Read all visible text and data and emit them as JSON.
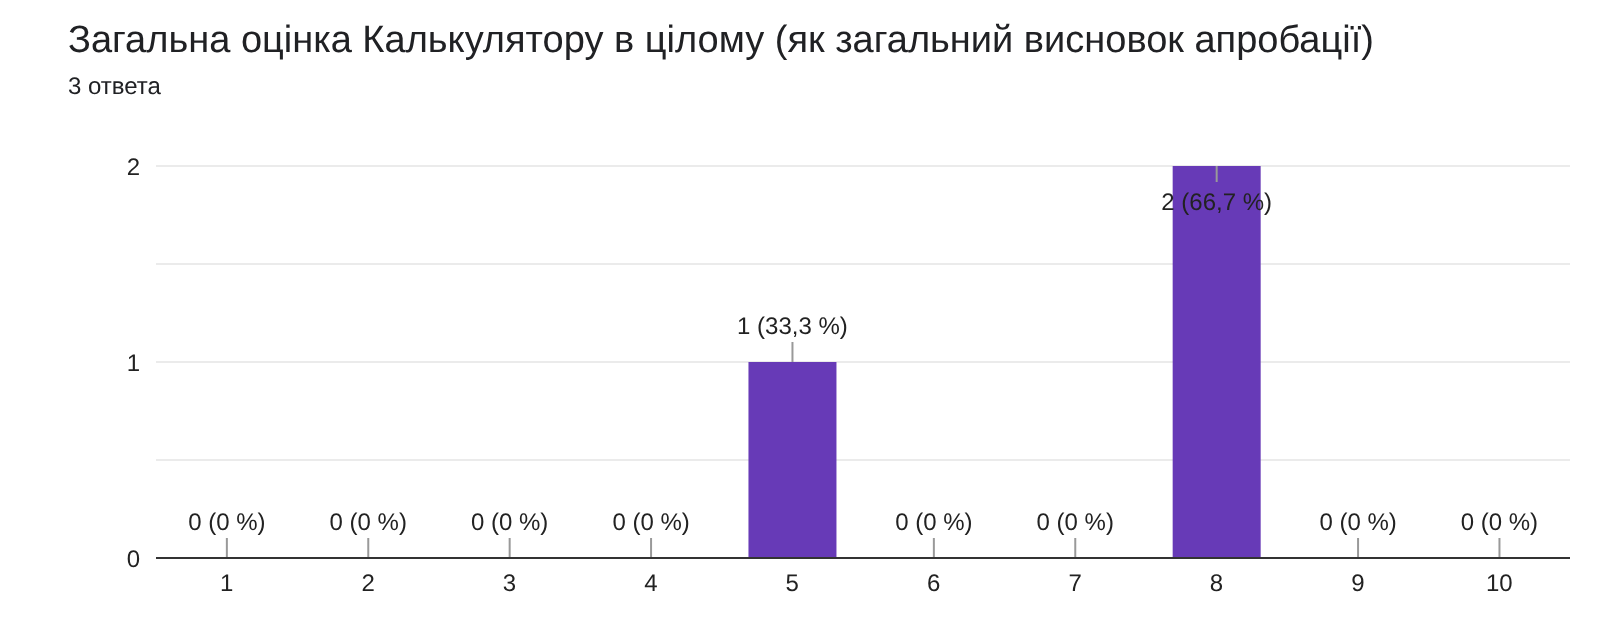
{
  "chart_data": {
    "type": "bar",
    "title": "Загальна оцінка Калькулятору в цілому (як загальний висновок апробації)",
    "subtitle": "3 ответа",
    "categories": [
      "1",
      "2",
      "3",
      "4",
      "5",
      "6",
      "7",
      "8",
      "9",
      "10"
    ],
    "values": [
      0,
      0,
      0,
      0,
      1,
      0,
      0,
      2,
      0,
      0
    ],
    "color": "#673ab7",
    "value_labels": [
      "0 (0 %)",
      "0 (0 %)",
      "0 (0 %)",
      "0 (0 %)",
      "1 (33,3 %)",
      "0 (0 %)",
      "0 (0 %)",
      "2 (66,7 %)",
      "0 (0 %)",
      "0 (0 %)"
    ],
    "ylim": [
      0,
      2
    ],
    "yticks": [
      0,
      {
        "value": 0.5,
        "label": null
      },
      1,
      {
        "value": 1.5,
        "label": null
      },
      2
    ],
    "grid": "y"
  }
}
